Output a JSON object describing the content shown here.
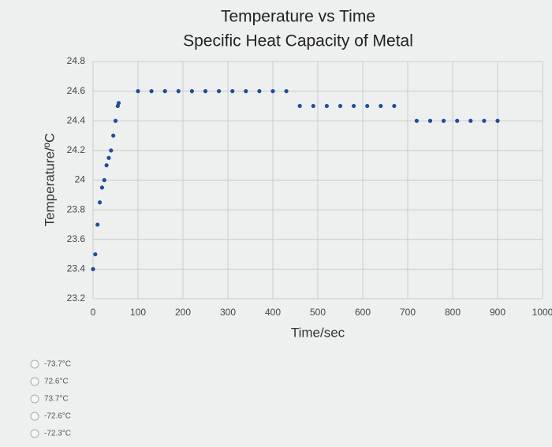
{
  "chart_data": {
    "type": "scatter",
    "title": "Temperature vs Time",
    "subtitle": "Specific Heat Capacity of Metal",
    "x_label": "Time/sec",
    "y_label": "Temperature/ºC",
    "color": "#1f4e9c",
    "grid": true,
    "x": [
      0,
      5,
      10,
      15,
      20,
      25,
      30,
      35,
      40,
      45,
      50,
      55,
      57,
      100,
      130,
      160,
      190,
      220,
      250,
      280,
      310,
      340,
      370,
      400,
      430,
      460,
      490,
      520,
      550,
      580,
      610,
      640,
      670,
      720,
      750,
      780,
      810,
      840,
      870,
      900
    ],
    "values": [
      23.4,
      23.5,
      23.7,
      23.85,
      23.95,
      24.0,
      24.1,
      24.15,
      24.2,
      24.3,
      24.4,
      24.5,
      24.52,
      24.6,
      24.6,
      24.6,
      24.6,
      24.6,
      24.6,
      24.6,
      24.6,
      24.6,
      24.6,
      24.6,
      24.6,
      24.5,
      24.5,
      24.5,
      24.5,
      24.5,
      24.5,
      24.5,
      24.5,
      24.4,
      24.4,
      24.4,
      24.4,
      24.4,
      24.4,
      24.4
    ],
    "xlim": [
      0,
      1000
    ],
    "xticks": [
      0,
      100,
      200,
      300,
      400,
      500,
      600,
      700,
      800,
      900,
      1000
    ],
    "ylim": [
      23.2,
      24.8
    ],
    "yticks": [
      23.2,
      23.4,
      23.6,
      23.8,
      24,
      24.2,
      24.4,
      24.6,
      24.8
    ]
  },
  "options": [
    "-73.7°C",
    "72.6°C",
    "73.7°C",
    "-72.6°C",
    "-72.3°C"
  ]
}
